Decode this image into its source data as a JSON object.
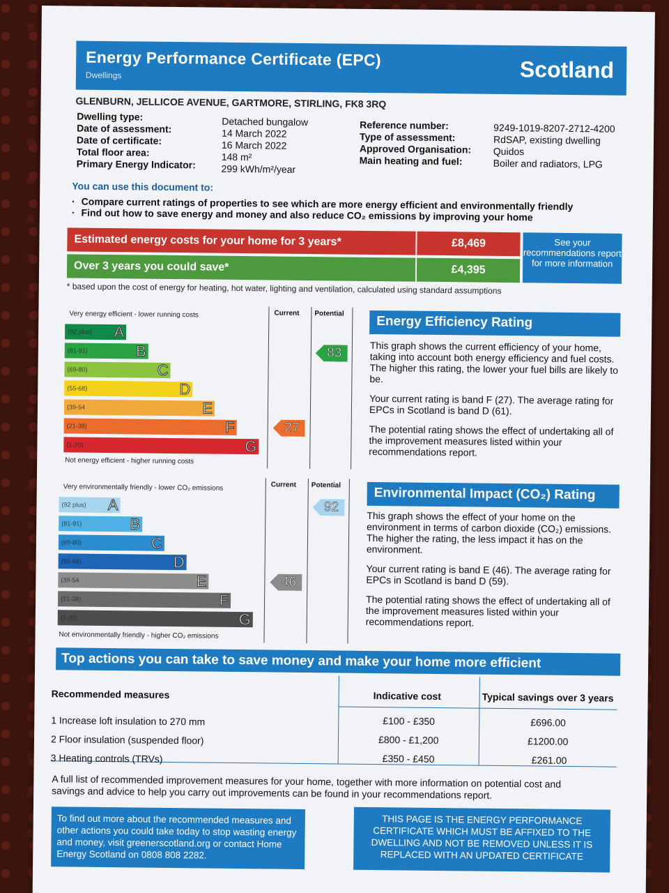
{
  "header": {
    "title": "Energy Performance Certificate (EPC)",
    "subtitle": "Dwellings",
    "country": "Scotland"
  },
  "address": "GLENBURN, JELLICOE AVENUE, GARTMORE, STIRLING, FK8 3RQ",
  "details_left": [
    {
      "label": "Dwelling type:",
      "value": "Detached bungalow"
    },
    {
      "label": "Date of assessment:",
      "value": "14 March 2022"
    },
    {
      "label": "Date of certificate:",
      "value": "16 March 2022"
    },
    {
      "label": "Total floor area:",
      "value": "148 m²"
    },
    {
      "label": "Primary Energy Indicator:",
      "value": "299 kWh/m²/year"
    }
  ],
  "details_right": [
    {
      "label": "Reference number:",
      "value": "9249-1019-8207-2712-4200"
    },
    {
      "label": "Type of assessment:",
      "value": "RdSAP, existing dwelling"
    },
    {
      "label": "Approved Organisation:",
      "value": "Quidos"
    },
    {
      "label": "Main heating and fuel:",
      "value": "Boiler and radiators, LPG"
    }
  ],
  "use_title": "You can use this document to:",
  "bullets": [
    "Compare current ratings of properties to see which are more energy efficient and environmentally friendly",
    "Find out how to save energy and money and also reduce CO₂ emissions by improving your home"
  ],
  "costs": {
    "estimated_label": "Estimated energy costs for your home for 3 years*",
    "estimated_value": "£8,469",
    "save_label": "Over 3 years you could save*",
    "save_value": "£4,395",
    "rec_box": "See your recommendations report for more information",
    "footnote": "* based upon the cost of energy for heating, hot water, lighting and ventilation, calculated using standard assumptions"
  },
  "energy_chart": {
    "top_label": "Very energy efficient - lower running costs",
    "bottom_label": "Not energy efficient - higher running costs",
    "current_head": "Current",
    "potential_head": "Potential",
    "current": "27",
    "potential": "83",
    "current_value": 27,
    "potential_value": 83,
    "bands": [
      {
        "range": "(92 plus)",
        "letter": "A",
        "color": "#0f8a4a"
      },
      {
        "range": "(81-91)",
        "letter": "B",
        "color": "#2aa343"
      },
      {
        "range": "(69-80)",
        "letter": "C",
        "color": "#8cc43f"
      },
      {
        "range": "(55-68)",
        "letter": "D",
        "color": "#f4d21c"
      },
      {
        "range": "(39-54",
        "letter": "E",
        "color": "#f2a93b"
      },
      {
        "range": "(21-38)",
        "letter": "F",
        "color": "#ec6c2d"
      },
      {
        "range": "(1-20)",
        "letter": "G",
        "color": "#d7272f"
      }
    ]
  },
  "energy_text": {
    "title": "Energy Efficiency Rating",
    "p1": "This graph shows the current efficiency of your home, taking into account both energy efficiency and fuel costs. The higher this rating, the lower your fuel bills are likely to be.",
    "p2": "Your current rating is band F (27). The average rating for EPCs in Scotland is band D (61).",
    "p3": "The potential rating shows the effect of undertaking all of the improvement measures listed within your recommendations report."
  },
  "env_chart": {
    "top_label": "Very environmentally friendly - lower CO₂ emissions",
    "bottom_label": "Not environmentally friendly - higher CO₂ emissions",
    "current_head": "Current",
    "potential_head": "Potential",
    "current": "46",
    "potential": "92",
    "current_value": 46,
    "potential_value": 92,
    "bands": [
      {
        "range": "(92 plus)",
        "letter": "A",
        "color": "#a7d4ef"
      },
      {
        "range": "(81-91)",
        "letter": "B",
        "color": "#4fb0e3"
      },
      {
        "range": "(69-80)",
        "letter": "C",
        "color": "#2a8bcf"
      },
      {
        "range": "(55-68)",
        "letter": "D",
        "color": "#1d66b5"
      },
      {
        "range": "(39-54",
        "letter": "E",
        "color": "#8c8c8c"
      },
      {
        "range": "(21-38)",
        "letter": "F",
        "color": "#6b6b6b"
      },
      {
        "range": "(1-20)",
        "letter": "G",
        "color": "#4d4d4d"
      }
    ]
  },
  "env_text": {
    "title": "Environmental Impact (CO₂) Rating",
    "p1": "This graph shows the effect of your home on the environment in terms of carbon dioxide (CO₂) emissions. The higher the rating, the less impact it has on the environment.",
    "p2": "Your current rating is band E (46). The average rating for EPCs in Scotland is band D (59).",
    "p3": "The potential rating shows the effect of undertaking all of the improvement measures listed within your recommendations report."
  },
  "actions": {
    "title": "Top actions you can take to save money and make your home more efficient",
    "col1": "Recommended measures",
    "col2": "Indicative cost",
    "col3": "Typical savings over 3 years",
    "rows": [
      {
        "measure": "1 Increase loft insulation to 270 mm",
        "cost": "£100 - £350",
        "saving": "£696.00"
      },
      {
        "measure": "2 Floor insulation (suspended floor)",
        "cost": "£800 - £1,200",
        "saving": "£1200.00"
      },
      {
        "measure": "3 Heating controls (TRVs)",
        "cost": "£350 - £450",
        "saving": "£261.00"
      }
    ]
  },
  "full_list": "A full list of recommended improvement measures for your home, together with more information on potential cost and savings and advice to help you carry out improvements can be found in your recommendations report.",
  "box_left": "To find out more about the recommended measures and other actions you could take today to stop wasting energy and money, visit greenerscotland.org or contact Home Energy Scotland on 0808 808 2282.",
  "box_right": "THIS PAGE IS THE ENERGY PERFORMANCE CERTIFICATE WHICH MUST BE AFFIXED TO THE DWELLING AND NOT BE REMOVED UNLESS IT IS REPLACED WITH AN UPDATED CERTIFICATE"
}
